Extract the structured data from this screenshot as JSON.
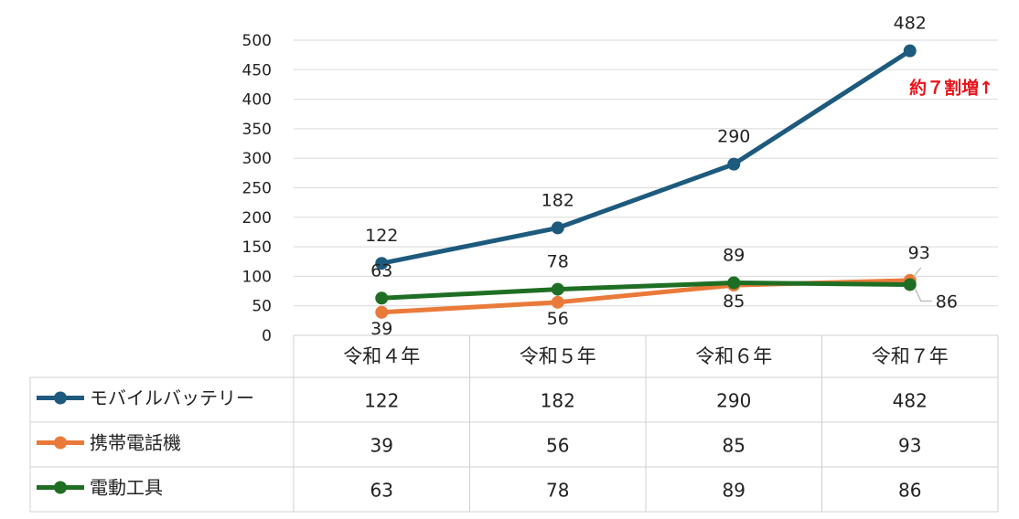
{
  "chart_data": {
    "type": "line",
    "categories": [
      "令和４年",
      "令和５年",
      "令和６年",
      "令和７年"
    ],
    "ylim": [
      0,
      500
    ],
    "yticks": [
      0,
      50,
      100,
      150,
      200,
      250,
      300,
      350,
      400,
      450,
      500
    ],
    "grid": true,
    "legend": "data-table-left",
    "series": [
      {
        "name": "モバイルバッテリー",
        "values": [
          122,
          182,
          290,
          482
        ],
        "color": "#1d5a7e"
      },
      {
        "name": "携帯電話機",
        "values": [
          39,
          56,
          85,
          93
        ],
        "color": "#ea7a3a"
      },
      {
        "name": "電動工具",
        "values": [
          63,
          78,
          89,
          86
        ],
        "color": "#1e6e23"
      }
    ],
    "annotation": {
      "text": "約７割増↑",
      "color": "#e8141a"
    }
  }
}
